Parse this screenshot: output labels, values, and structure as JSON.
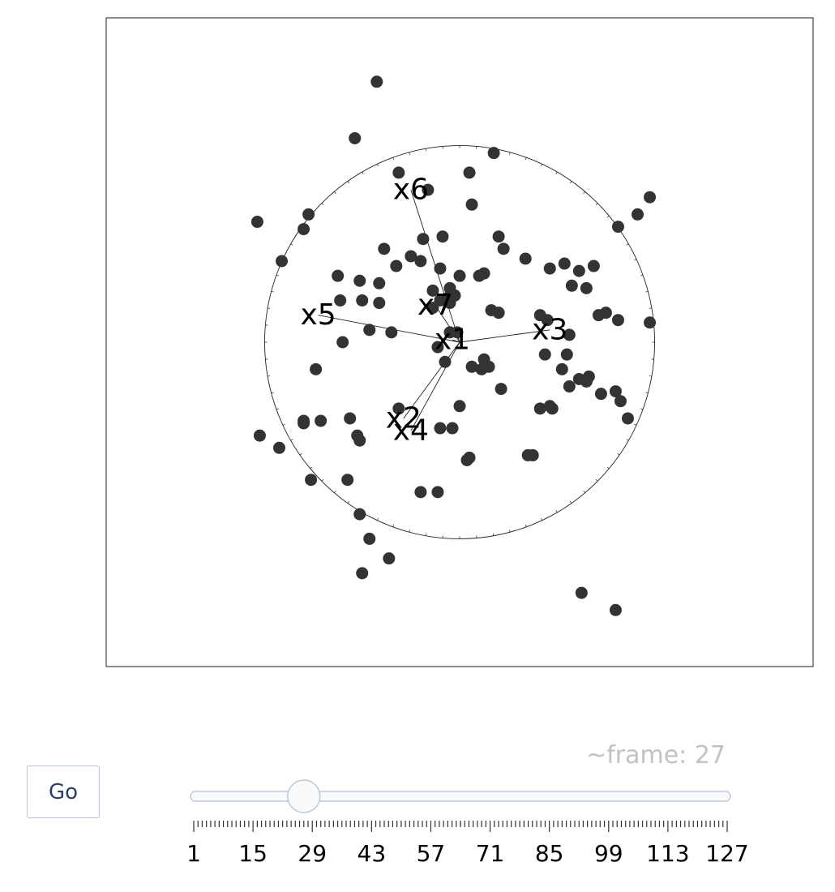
{
  "chart_data": {
    "type": "scatter",
    "title": "",
    "xlabel": "",
    "ylabel": "",
    "xlim": [
      -1.45,
      1.45
    ],
    "ylim": [
      -1.32,
      1.32
    ],
    "grid": false,
    "point_color": "#333333",
    "circle_radius": 0.8,
    "points": [
      [
        -0.34,
        1.06
      ],
      [
        -0.43,
        0.83
      ],
      [
        -0.25,
        0.69
      ],
      [
        0.04,
        0.69
      ],
      [
        -0.13,
        0.62
      ],
      [
        0.14,
        0.77
      ],
      [
        0.05,
        0.56
      ],
      [
        -0.83,
        0.49
      ],
      [
        -0.62,
        0.52
      ],
      [
        -0.64,
        0.46
      ],
      [
        -0.73,
        0.33
      ],
      [
        0.65,
        0.47
      ],
      [
        0.73,
        0.52
      ],
      [
        -0.31,
        0.38
      ],
      [
        -0.15,
        0.42
      ],
      [
        -0.07,
        0.43
      ],
      [
        -0.2,
        0.35
      ],
      [
        0.16,
        0.43
      ],
      [
        0.18,
        0.38
      ],
      [
        -0.26,
        0.31
      ],
      [
        -0.16,
        0.33
      ],
      [
        -0.08,
        0.3
      ],
      [
        0.0,
        0.27
      ],
      [
        -0.5,
        0.27
      ],
      [
        -0.41,
        0.25
      ],
      [
        -0.33,
        0.24
      ],
      [
        0.1,
        0.28
      ],
      [
        0.08,
        0.27
      ],
      [
        0.27,
        0.34
      ],
      [
        0.37,
        0.3
      ],
      [
        0.43,
        0.32
      ],
      [
        0.55,
        0.31
      ],
      [
        0.49,
        0.29
      ],
      [
        0.52,
        0.22
      ],
      [
        0.46,
        0.23
      ],
      [
        -0.04,
        0.22
      ],
      [
        -0.11,
        0.21
      ],
      [
        -0.08,
        0.17
      ],
      [
        -0.05,
        0.18
      ],
      [
        -0.02,
        0.19
      ],
      [
        -0.49,
        0.17
      ],
      [
        -0.4,
        0.17
      ],
      [
        -0.33,
        0.16
      ],
      [
        -0.11,
        0.14
      ],
      [
        -0.04,
        0.16
      ],
      [
        0.13,
        0.13
      ],
      [
        0.16,
        0.12
      ],
      [
        0.33,
        0.11
      ],
      [
        0.36,
        0.09
      ],
      [
        0.57,
        0.11
      ],
      [
        0.6,
        0.12
      ],
      [
        0.65,
        0.09
      ],
      [
        0.78,
        0.08
      ],
      [
        0.45,
        0.03
      ],
      [
        -0.37,
        0.05
      ],
      [
        -0.28,
        0.04
      ],
      [
        -0.04,
        0.04
      ],
      [
        -0.01,
        0.04
      ],
      [
        -0.48,
        0.0
      ],
      [
        -0.09,
        -0.02
      ],
      [
        0.35,
        -0.05
      ],
      [
        0.44,
        -0.05
      ],
      [
        0.1,
        -0.07
      ],
      [
        0.12,
        -0.1
      ],
      [
        0.05,
        -0.1
      ],
      [
        0.09,
        -0.11
      ],
      [
        -0.06,
        -0.08
      ],
      [
        -0.59,
        -0.11
      ],
      [
        0.42,
        -0.11
      ],
      [
        0.49,
        -0.15
      ],
      [
        0.52,
        -0.16
      ],
      [
        0.45,
        -0.18
      ],
      [
        0.53,
        -0.14
      ],
      [
        0.58,
        -0.21
      ],
      [
        0.64,
        -0.2
      ],
      [
        0.17,
        -0.19
      ],
      [
        0.0,
        -0.26
      ],
      [
        0.33,
        -0.27
      ],
      [
        -0.25,
        -0.27
      ],
      [
        0.37,
        -0.26
      ],
      [
        0.38,
        -0.27
      ],
      [
        -0.45,
        -0.31
      ],
      [
        -0.64,
        -0.32
      ],
      [
        -0.57,
        -0.32
      ],
      [
        -0.64,
        -0.33
      ],
      [
        -0.08,
        -0.35
      ],
      [
        -0.03,
        -0.35
      ],
      [
        -0.42,
        -0.38
      ],
      [
        -0.41,
        -0.4
      ],
      [
        0.04,
        -0.47
      ],
      [
        0.03,
        -0.48
      ],
      [
        0.28,
        -0.46
      ],
      [
        0.3,
        -0.46
      ],
      [
        -0.61,
        -0.56
      ],
      [
        -0.46,
        -0.56
      ],
      [
        -0.16,
        -0.61
      ],
      [
        -0.09,
        -0.61
      ],
      [
        -0.41,
        -0.7
      ],
      [
        -0.37,
        -0.8
      ],
      [
        -0.29,
        -0.88
      ],
      [
        -0.4,
        -0.94
      ],
      [
        0.5,
        -1.02
      ],
      [
        0.64,
        -1.09
      ],
      [
        -0.82,
        -0.38
      ],
      [
        -0.74,
        -0.43
      ],
      [
        0.78,
        0.59
      ],
      [
        0.66,
        -0.24
      ],
      [
        0.69,
        -0.31
      ]
    ],
    "axes": [
      {
        "name": "x1",
        "x": -0.03,
        "y": 0.01
      },
      {
        "name": "x2",
        "x": -0.23,
        "y": -0.31
      },
      {
        "name": "x3",
        "x": 0.37,
        "y": 0.05
      },
      {
        "name": "x4",
        "x": -0.2,
        "y": -0.36
      },
      {
        "name": "x5",
        "x": -0.58,
        "y": 0.11
      },
      {
        "name": "x6",
        "x": -0.2,
        "y": 0.62
      },
      {
        "name": "x7",
        "x": -0.1,
        "y": 0.15
      }
    ]
  },
  "controls": {
    "go_label": "Go",
    "frame_readout": "~frame: 27",
    "slider_value": 27,
    "slider_min": 1,
    "slider_max": 127,
    "tick_labels": [
      "1",
      "15",
      "29",
      "43",
      "57",
      "71",
      "85",
      "99",
      "113",
      "127"
    ]
  }
}
